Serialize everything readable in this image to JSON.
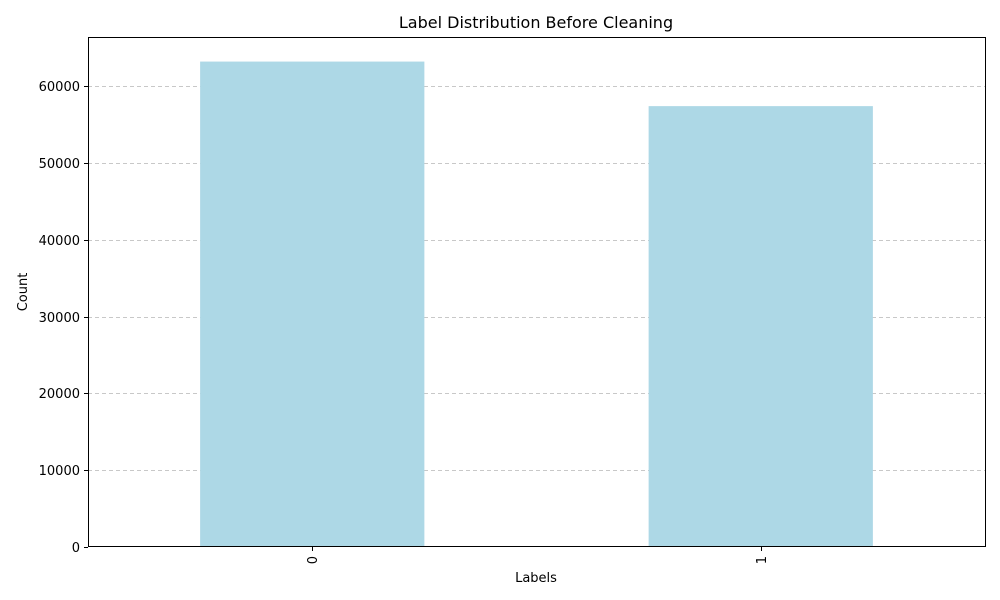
{
  "chart_data": {
    "type": "bar",
    "title": "Label Distribution Before Cleaning",
    "xlabel": "Labels",
    "ylabel": "Count",
    "categories": [
      "0",
      "1"
    ],
    "values": [
      63200,
      57400
    ],
    "ylim": [
      0,
      66400
    ],
    "yticks": [
      0,
      10000,
      20000,
      30000,
      40000,
      50000,
      60000
    ],
    "ytick_labels": [
      "0",
      "10000",
      "20000",
      "30000",
      "40000",
      "50000",
      "60000"
    ],
    "grid": "y-dashed",
    "bar_color": "#add8e6",
    "grid_color": "#c8c8c8",
    "xtick_rotation": "vertical"
  }
}
